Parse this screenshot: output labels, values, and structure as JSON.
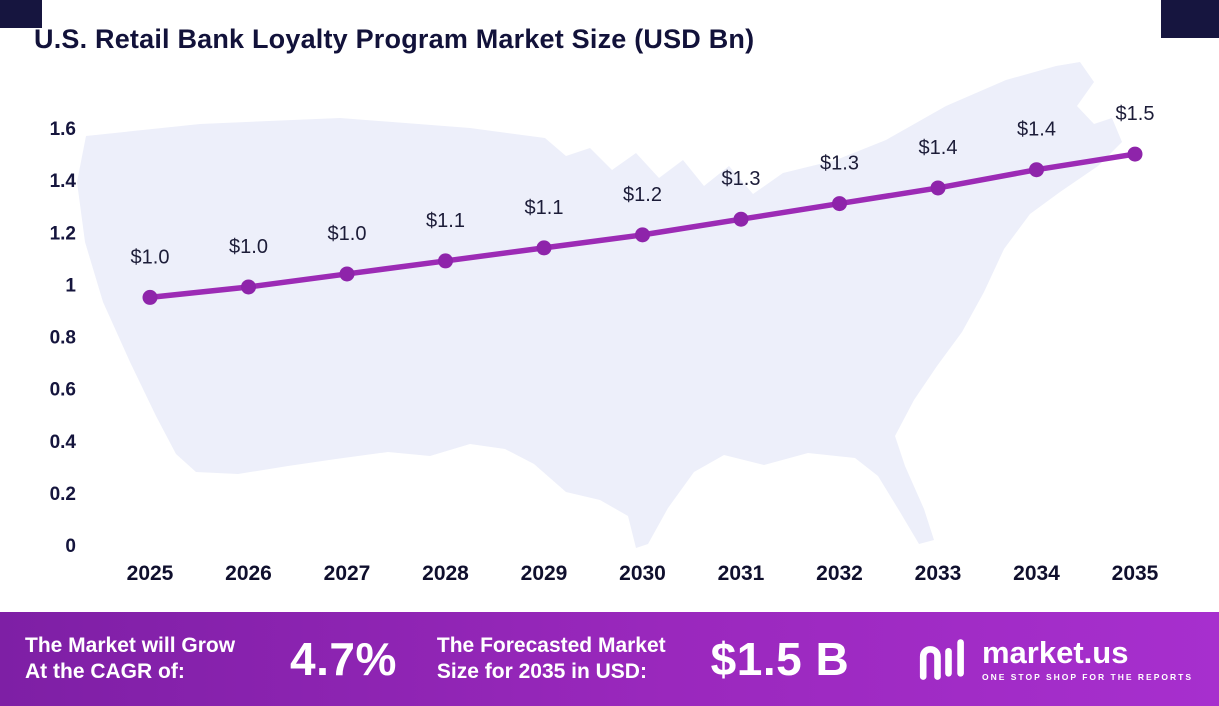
{
  "page": {
    "title": "U.S. Retail Bank Loyalty Program Market Size (USD Bn)"
  },
  "chart_data": {
    "type": "line",
    "title": "U.S. Retail Bank Loyalty Program Market Size (USD Bn)",
    "x": [
      "2025",
      "2026",
      "2027",
      "2028",
      "2029",
      "2030",
      "2031",
      "2032",
      "2033",
      "2034",
      "2035"
    ],
    "values": [
      0.95,
      0.99,
      1.04,
      1.09,
      1.14,
      1.19,
      1.25,
      1.31,
      1.37,
      1.44,
      1.5
    ],
    "point_labels": [
      "$1.0",
      "$1.0",
      "$1.0",
      "$1.1",
      "$1.1",
      "$1.2",
      "$1.3",
      "$1.3",
      "$1.4",
      "$1.4",
      "$1.5"
    ],
    "xlabel": "",
    "ylabel": "",
    "ylim": [
      0,
      1.6
    ],
    "yticks": [
      0,
      0.2,
      0.4,
      0.6,
      0.8,
      1,
      1.2,
      1.4,
      1.6
    ],
    "ytick_labels": [
      "0",
      "0.2",
      "0.4",
      "0.6",
      "0.8",
      "1",
      "1.2",
      "1.4",
      "1.6"
    ],
    "grid": false,
    "legend": "none",
    "line_color": "#9c2bb5",
    "point_color": "#8e24aa",
    "background": "light US map silhouette"
  },
  "footer": {
    "cagr_label_line1": "The Market will Grow",
    "cagr_label_line2": "At the CAGR of:",
    "cagr_value": "4.7%",
    "forecast_label_line1": "The Forecasted Market",
    "forecast_label_line2": "Size for 2035 in USD:",
    "forecast_value": "$1.5 B",
    "brand_name": "market.us",
    "brand_tagline": "ONE STOP SHOP FOR THE REPORTS"
  },
  "colors": {
    "accent_purple": "#9c2bb5",
    "banner_gradient_start": "#7e1fa5",
    "banner_gradient_end": "#a72fce",
    "title_text": "#12123a",
    "map_fill": "#edeffa",
    "corner_accent": "#16153f"
  }
}
